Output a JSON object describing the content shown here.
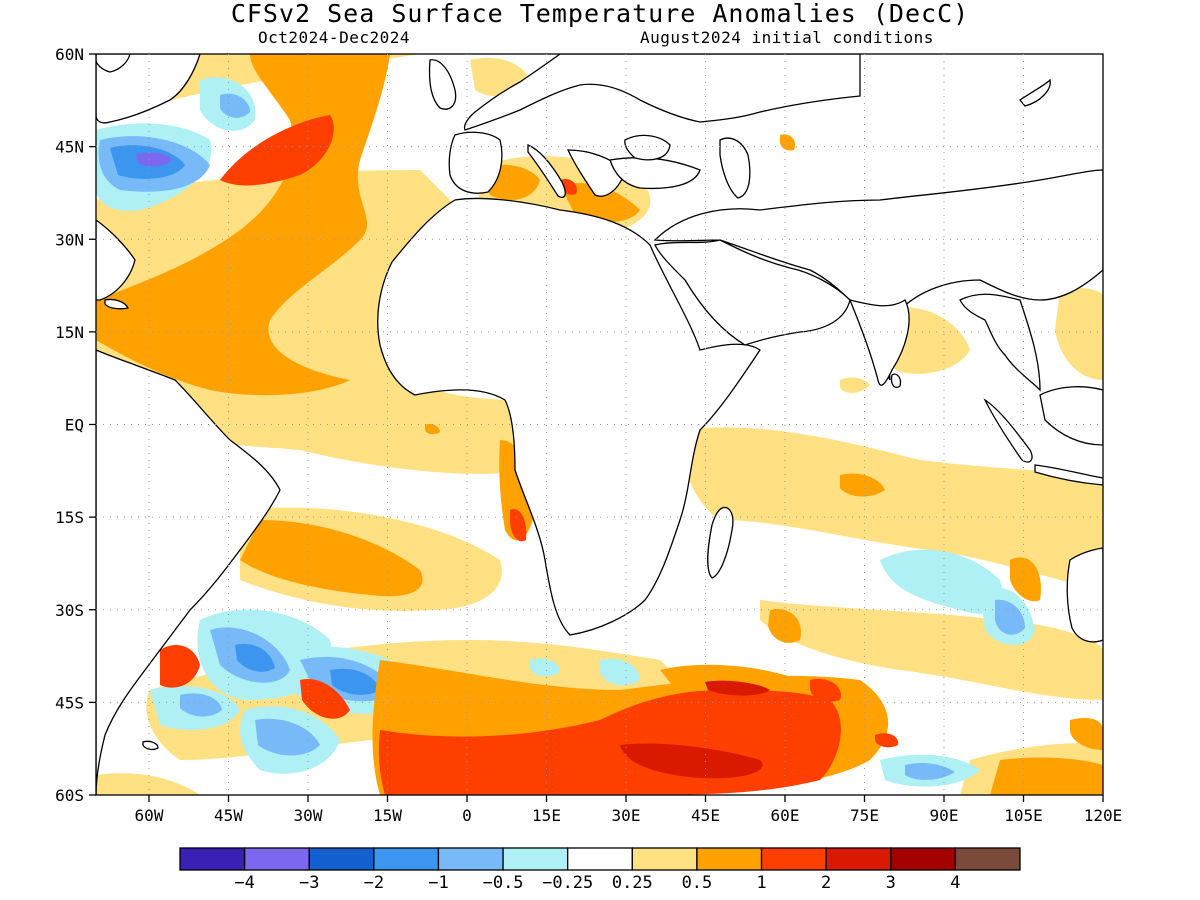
{
  "title": "CFSv2 Sea Surface Temperature Anomalies (DecC)",
  "subtitle_left": "Oct2024-Dec2024",
  "subtitle_right": "August2024 initial conditions",
  "map": {
    "lon_range": [
      -70,
      120
    ],
    "lat_range": [
      -60,
      60
    ],
    "lat_ticks": [
      {
        "lat": 60,
        "label": "60N"
      },
      {
        "lat": 45,
        "label": "45N"
      },
      {
        "lat": 30,
        "label": "30N"
      },
      {
        "lat": 15,
        "label": "15N"
      },
      {
        "lat": 0,
        "label": "EQ"
      },
      {
        "lat": -15,
        "label": "15S"
      },
      {
        "lat": -30,
        "label": "30S"
      },
      {
        "lat": -45,
        "label": "45S"
      },
      {
        "lat": -60,
        "label": "60S"
      }
    ],
    "lon_ticks": [
      {
        "lon": -60,
        "label": "60W"
      },
      {
        "lon": -45,
        "label": "45W"
      },
      {
        "lon": -30,
        "label": "30W"
      },
      {
        "lon": -15,
        "label": "15W"
      },
      {
        "lon": 0,
        "label": "0"
      },
      {
        "lon": 15,
        "label": "15E"
      },
      {
        "lon": 30,
        "label": "30E"
      },
      {
        "lon": 45,
        "label": "45E"
      },
      {
        "lon": 60,
        "label": "60E"
      },
      {
        "lon": 75,
        "label": "75E"
      },
      {
        "lon": 90,
        "label": "90E"
      },
      {
        "lon": 105,
        "label": "105E"
      },
      {
        "lon": 120,
        "label": "120E"
      }
    ],
    "grid": "dotted"
  },
  "colorbar": {
    "colors": [
      "#3a1fb5",
      "#7b68ee",
      "#1560d0",
      "#3c96f0",
      "#78b9f8",
      "#aff0f5",
      "#ffffff",
      "#ffe082",
      "#ffa200",
      "#ff3f00",
      "#d91a00",
      "#a50000",
      "#7a4a3a"
    ],
    "labels": [
      "-4",
      "-3",
      "-2",
      "-1",
      "-0.5",
      "-0.25",
      "0.25",
      "0.5",
      "1",
      "2",
      "3",
      "4"
    ]
  }
}
